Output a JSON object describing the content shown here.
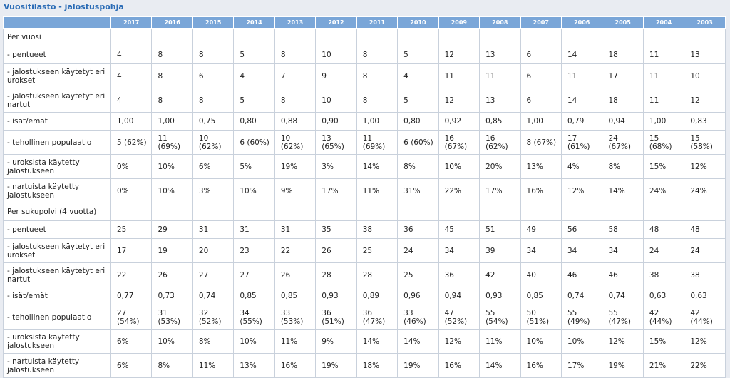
{
  "title": "Vuositilasto - jalostuspohja",
  "years": [
    "2017",
    "2016",
    "2015",
    "2014",
    "2013",
    "2012",
    "2011",
    "2010",
    "2009",
    "2008",
    "2007",
    "2006",
    "2005",
    "2004",
    "2003"
  ],
  "rows": [
    {
      "type": "section",
      "label": "Per vuosi",
      "h": 1
    },
    {
      "label": "- pentueet",
      "h": 1,
      "values": [
        "4",
        "8",
        "8",
        "5",
        "8",
        "10",
        "8",
        "5",
        "12",
        "13",
        "6",
        "14",
        "18",
        "11",
        "13"
      ]
    },
    {
      "label": "- jalostukseen käytetyt eri urokset",
      "h": 2,
      "values": [
        "4",
        "8",
        "6",
        "4",
        "7",
        "9",
        "8",
        "4",
        "11",
        "11",
        "6",
        "11",
        "17",
        "11",
        "10"
      ]
    },
    {
      "label": "- jalostukseen käytetyt eri nartut",
      "h": 2,
      "values": [
        "4",
        "8",
        "8",
        "5",
        "8",
        "10",
        "8",
        "5",
        "12",
        "13",
        "6",
        "14",
        "18",
        "11",
        "12"
      ]
    },
    {
      "label": "- isät/emät",
      "h": 1,
      "values": [
        "1,00",
        "1,00",
        "0,75",
        "0,80",
        "0,88",
        "0,90",
        "1,00",
        "0,80",
        "0,92",
        "0,85",
        "1,00",
        "0,79",
        "0,94",
        "1,00",
        "0,83"
      ]
    },
    {
      "label": "- tehollinen populaatio",
      "h": 2,
      "values": [
        "5 (62%)",
        "11 (69%)",
        "10 (62%)",
        "6 (60%)",
        "10 (62%)",
        "13 (65%)",
        "11 (69%)",
        "6 (60%)",
        "16 (67%)",
        "16 (62%)",
        "8 (67%)",
        "17 (61%)",
        "24 (67%)",
        "15 (68%)",
        "15 (58%)"
      ]
    },
    {
      "label": "- uroksista käytetty jalostukseen",
      "h": 2,
      "values": [
        "0%",
        "10%",
        "6%",
        "5%",
        "19%",
        "3%",
        "14%",
        "8%",
        "10%",
        "20%",
        "13%",
        "4%",
        "8%",
        "15%",
        "12%"
      ]
    },
    {
      "label": "- nartuista käytetty jalostukseen",
      "h": 2,
      "values": [
        "0%",
        "10%",
        "3%",
        "10%",
        "9%",
        "17%",
        "11%",
        "31%",
        "22%",
        "17%",
        "16%",
        "12%",
        "14%",
        "24%",
        "24%"
      ]
    },
    {
      "type": "section",
      "label": "Per sukupolvi (4 vuotta)",
      "h": 1
    },
    {
      "label": "- pentueet",
      "h": 1,
      "values": [
        "25",
        "29",
        "31",
        "31",
        "31",
        "35",
        "38",
        "36",
        "45",
        "51",
        "49",
        "56",
        "58",
        "48",
        "48"
      ]
    },
    {
      "label": "- jalostukseen käytetyt eri urokset",
      "h": 2,
      "values": [
        "17",
        "19",
        "20",
        "23",
        "22",
        "26",
        "25",
        "24",
        "34",
        "39",
        "34",
        "34",
        "34",
        "24",
        "24"
      ]
    },
    {
      "label": "- jalostukseen käytetyt eri nartut",
      "h": 2,
      "values": [
        "22",
        "26",
        "27",
        "27",
        "26",
        "28",
        "28",
        "25",
        "36",
        "42",
        "40",
        "46",
        "46",
        "38",
        "38"
      ]
    },
    {
      "label": "- isät/emät",
      "h": 1,
      "values": [
        "0,77",
        "0,73",
        "0,74",
        "0,85",
        "0,85",
        "0,93",
        "0,89",
        "0,96",
        "0,94",
        "0,93",
        "0,85",
        "0,74",
        "0,74",
        "0,63",
        "0,63"
      ]
    },
    {
      "label": "- tehollinen populaatio",
      "h": 2,
      "values": [
        "27 (54%)",
        "31 (53%)",
        "32 (52%)",
        "34 (55%)",
        "33 (53%)",
        "36 (51%)",
        "36 (47%)",
        "33 (46%)",
        "47 (52%)",
        "55 (54%)",
        "50 (51%)",
        "55 (49%)",
        "55 (47%)",
        "42 (44%)",
        "42 (44%)"
      ]
    },
    {
      "label": "- uroksista käytetty jalostukseen",
      "h": 2,
      "values": [
        "6%",
        "10%",
        "8%",
        "10%",
        "11%",
        "9%",
        "14%",
        "14%",
        "12%",
        "11%",
        "10%",
        "10%",
        "12%",
        "15%",
        "12%"
      ]
    },
    {
      "label": "- nartuista käytetty jalostukseen",
      "h": 2,
      "values": [
        "6%",
        "8%",
        "11%",
        "13%",
        "16%",
        "19%",
        "18%",
        "19%",
        "16%",
        "14%",
        "16%",
        "17%",
        "19%",
        "21%",
        "22%"
      ]
    }
  ]
}
